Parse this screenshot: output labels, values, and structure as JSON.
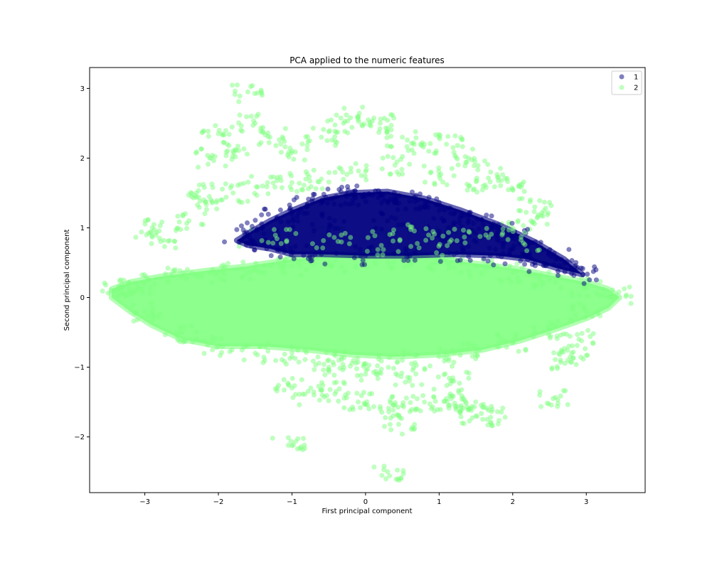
{
  "chart_data": {
    "type": "scatter",
    "title": "PCA applied to the numeric features",
    "xlabel": "First principal component",
    "ylabel": "Second principal component",
    "xlim": [
      -3.75,
      3.8
    ],
    "ylim": [
      -2.8,
      3.3
    ],
    "xticks": [
      -3,
      -2,
      -1,
      0,
      1,
      2,
      3
    ],
    "yticks": [
      -2,
      -1,
      0,
      1,
      2,
      3
    ],
    "xtick_labels": [
      "−3",
      "−2",
      "−1",
      "0",
      "1",
      "2",
      "3"
    ],
    "ytick_labels": [
      "−2",
      "−1",
      "0",
      "1",
      "2",
      "3"
    ],
    "grid": false,
    "legend_position": "upper right",
    "series": [
      {
        "name": "1",
        "color": "#000080",
        "alpha": 0.5,
        "region_outline": [
          [
            -1.75,
            0.82
          ],
          [
            -1.55,
            0.95
          ],
          [
            -1.3,
            1.1
          ],
          [
            -1.0,
            1.25
          ],
          [
            -0.6,
            1.42
          ],
          [
            -0.2,
            1.5
          ],
          [
            0.3,
            1.52
          ],
          [
            0.8,
            1.42
          ],
          [
            1.3,
            1.25
          ],
          [
            1.8,
            1.05
          ],
          [
            2.3,
            0.8
          ],
          [
            2.7,
            0.55
          ],
          [
            2.95,
            0.33
          ],
          [
            2.6,
            0.42
          ],
          [
            2.2,
            0.55
          ],
          [
            1.8,
            0.6
          ],
          [
            1.2,
            0.62
          ],
          [
            0.6,
            0.6
          ],
          [
            0.0,
            0.6
          ],
          [
            -0.6,
            0.62
          ],
          [
            -1.0,
            0.62
          ],
          [
            -1.3,
            0.7
          ],
          [
            -1.6,
            0.75
          ]
        ],
        "points": [
          [
            -1.7,
            0.8
          ],
          [
            -1.6,
            0.9
          ],
          [
            -1.4,
            1.0
          ],
          [
            -1.2,
            1.15
          ],
          [
            -1.0,
            1.2
          ],
          [
            -0.8,
            1.3
          ],
          [
            -0.6,
            1.35
          ],
          [
            -0.4,
            1.45
          ],
          [
            -0.2,
            1.48
          ],
          [
            0.0,
            1.45
          ],
          [
            0.2,
            1.5
          ],
          [
            0.4,
            1.4
          ],
          [
            0.6,
            1.38
          ],
          [
            0.8,
            1.3
          ],
          [
            1.0,
            1.25
          ],
          [
            1.2,
            1.2
          ],
          [
            1.4,
            1.1
          ],
          [
            1.6,
            1.05
          ],
          [
            1.8,
            0.95
          ],
          [
            2.0,
            0.88
          ],
          [
            2.2,
            0.8
          ],
          [
            2.4,
            0.68
          ],
          [
            2.6,
            0.55
          ],
          [
            2.8,
            0.42
          ],
          [
            2.95,
            0.33
          ],
          [
            -1.2,
            0.7
          ],
          [
            -1.0,
            0.65
          ],
          [
            -0.6,
            0.62
          ],
          [
            0.0,
            0.6
          ],
          [
            0.6,
            0.6
          ],
          [
            1.2,
            0.62
          ],
          [
            1.8,
            0.6
          ],
          [
            2.3,
            0.5
          ],
          [
            -0.5,
            1.0
          ],
          [
            0.3,
            1.1
          ],
          [
            1.0,
            0.95
          ],
          [
            1.5,
            0.8
          ],
          [
            2.0,
            0.7
          ]
        ]
      },
      {
        "name": "2",
        "color": "#80FF80",
        "alpha": 0.5,
        "region_outline": [
          [
            -3.45,
            0.12
          ],
          [
            -3.2,
            0.22
          ],
          [
            -2.8,
            0.3
          ],
          [
            -2.2,
            0.38
          ],
          [
            -1.6,
            0.45
          ],
          [
            -1.0,
            0.55
          ],
          [
            -0.4,
            0.6
          ],
          [
            0.2,
            0.62
          ],
          [
            0.8,
            0.6
          ],
          [
            1.4,
            0.5
          ],
          [
            2.0,
            0.42
          ],
          [
            2.6,
            0.3
          ],
          [
            3.0,
            0.22
          ],
          [
            3.3,
            0.12
          ],
          [
            3.45,
            0.0
          ],
          [
            3.3,
            -0.15
          ],
          [
            3.0,
            -0.3
          ],
          [
            2.6,
            -0.45
          ],
          [
            2.1,
            -0.62
          ],
          [
            1.6,
            -0.75
          ],
          [
            1.0,
            -0.82
          ],
          [
            0.4,
            -0.85
          ],
          [
            -0.2,
            -0.82
          ],
          [
            -0.8,
            -0.75
          ],
          [
            -1.4,
            -0.7
          ],
          [
            -2.0,
            -0.7
          ],
          [
            -2.5,
            -0.6
          ],
          [
            -2.9,
            -0.4
          ],
          [
            -3.2,
            -0.2
          ],
          [
            -3.45,
            0.0
          ]
        ],
        "points": [
          [
            -3.4,
            0.1
          ],
          [
            -3.3,
            0.15
          ],
          [
            -3.0,
            0.2
          ],
          [
            -2.5,
            0.3
          ],
          [
            -2.0,
            0.35
          ],
          [
            -1.5,
            0.4
          ],
          [
            -1.0,
            0.45
          ],
          [
            -0.5,
            0.5
          ],
          [
            0.0,
            0.55
          ],
          [
            0.5,
            0.55
          ],
          [
            1.0,
            0.5
          ],
          [
            1.5,
            0.45
          ],
          [
            2.0,
            0.35
          ],
          [
            2.5,
            0.25
          ],
          [
            3.0,
            0.15
          ],
          [
            3.4,
            0.02
          ],
          [
            -3.0,
            -0.2
          ],
          [
            -2.5,
            -0.5
          ],
          [
            -2.0,
            -0.7
          ],
          [
            -1.5,
            -0.8
          ],
          [
            -1.0,
            -0.85
          ],
          [
            -0.5,
            -0.9
          ],
          [
            0.0,
            -0.95
          ],
          [
            0.5,
            -0.9
          ],
          [
            1.0,
            -0.85
          ],
          [
            1.5,
            -0.75
          ],
          [
            2.0,
            -0.65
          ],
          [
            2.5,
            -0.45
          ],
          [
            3.0,
            -0.2
          ],
          [
            2.8,
            -0.8
          ],
          [
            2.9,
            -0.6
          ],
          [
            2.75,
            -0.9
          ],
          [
            -2.3,
            1.5
          ],
          [
            -2.1,
            2.0
          ],
          [
            -2.0,
            2.35
          ],
          [
            -1.8,
            2.1
          ],
          [
            -1.6,
            2.95
          ],
          [
            -1.5,
            2.5
          ],
          [
            -1.3,
            2.3
          ],
          [
            -1.0,
            2.1
          ],
          [
            -0.6,
            2.3
          ],
          [
            -0.3,
            2.5
          ],
          [
            -0.1,
            2.6
          ],
          [
            0.2,
            2.5
          ],
          [
            0.5,
            2.3
          ],
          [
            0.8,
            2.2
          ],
          [
            1.1,
            2.2
          ],
          [
            1.4,
            2.0
          ],
          [
            1.7,
            1.8
          ],
          [
            2.0,
            1.55
          ],
          [
            2.3,
            1.3
          ],
          [
            2.25,
            1.1
          ],
          [
            -2.9,
            1.0
          ],
          [
            -2.8,
            0.85
          ],
          [
            -2.4,
            1.1
          ],
          [
            -2.2,
            1.4
          ],
          [
            -1.8,
            1.5
          ],
          [
            -1.4,
            1.6
          ],
          [
            -1.0,
            1.65
          ],
          [
            -0.6,
            1.7
          ],
          [
            -0.2,
            1.8
          ],
          [
            0.4,
            1.9
          ],
          [
            1.0,
            1.75
          ],
          [
            1.6,
            1.6
          ],
          [
            -1.5,
            0.85
          ],
          [
            -1.2,
            0.9
          ],
          [
            -0.5,
            0.9
          ],
          [
            0.3,
            0.95
          ],
          [
            0.8,
            0.95
          ],
          [
            1.3,
            0.9
          ],
          [
            1.8,
            0.95
          ],
          [
            2.2,
            0.7
          ],
          [
            0.5,
            0.65
          ],
          [
            1.0,
            0.55
          ],
          [
            -1.0,
            -1.3
          ],
          [
            -0.7,
            -1.4
          ],
          [
            -0.4,
            -1.35
          ],
          [
            -0.1,
            -1.5
          ],
          [
            0.2,
            -1.6
          ],
          [
            0.5,
            -1.55
          ],
          [
            0.8,
            -1.5
          ],
          [
            1.1,
            -1.45
          ],
          [
            1.4,
            -1.6
          ],
          [
            1.5,
            -1.7
          ],
          [
            1.7,
            -1.72
          ],
          [
            1.3,
            -1.55
          ],
          [
            0.45,
            -1.82
          ],
          [
            -1.05,
            -2.12
          ],
          [
            0.3,
            -2.5
          ],
          [
            2.55,
            -1.45
          ],
          [
            -0.5,
            -1.0
          ],
          [
            0.0,
            -1.1
          ],
          [
            0.6,
            -1.15
          ],
          [
            1.2,
            -1.2
          ]
        ]
      }
    ]
  }
}
